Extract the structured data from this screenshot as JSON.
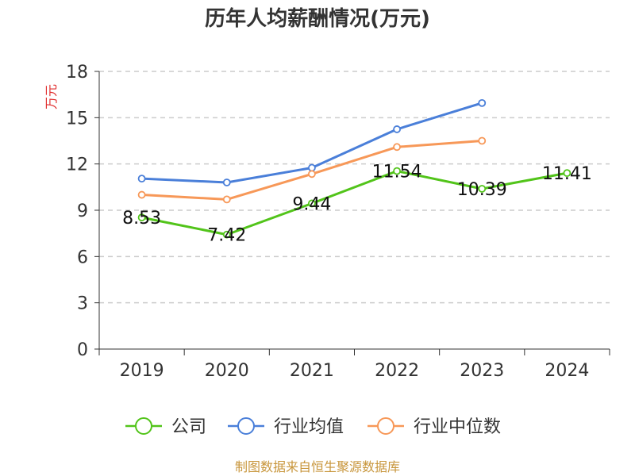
{
  "chart_data": {
    "type": "line",
    "title": "历年人均薪酬情况(万元)",
    "ylabel": "万元",
    "xlabel": "",
    "categories": [
      "2019",
      "2020",
      "2021",
      "2022",
      "2023",
      "2024"
    ],
    "ylim": [
      0,
      18
    ],
    "yticks": [
      0,
      3,
      6,
      9,
      12,
      15,
      18
    ],
    "grid": true,
    "legend_position": "bottom",
    "series": [
      {
        "name": "公司",
        "color": "#52c41a",
        "values": [
          8.53,
          7.42,
          9.44,
          11.54,
          10.39,
          11.41
        ],
        "labels": [
          "8.53",
          "7.42",
          "9.44",
          "11.54",
          "10.39",
          "11.41"
        ]
      },
      {
        "name": "行业均值",
        "color": "#4a7fd9",
        "values": [
          11.05,
          10.8,
          11.75,
          14.25,
          15.95,
          null
        ]
      },
      {
        "name": "行业中位数",
        "color": "#f79858",
        "values": [
          10.0,
          9.7,
          11.35,
          13.1,
          13.5,
          null
        ]
      }
    ],
    "source": "制图数据来自恒生聚源数据库",
    "colors": {
      "title": "#333333",
      "ylabel": "#e03030",
      "source": "#c8963c",
      "grid": "#cccccc",
      "axis": "#333333"
    }
  }
}
